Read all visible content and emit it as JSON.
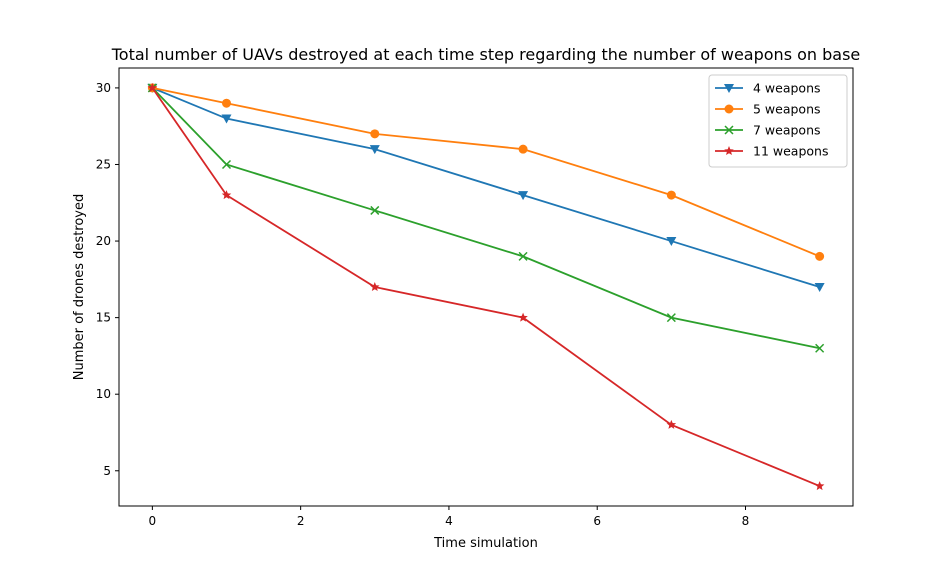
{
  "chart_data": {
    "type": "line",
    "title": "Total number of UAVs destroyed at each time step regarding the number of weapons on base",
    "xlabel": "Time simulation",
    "ylabel": "Number of drones destroyed",
    "xlim": [
      -0.45,
      9.45
    ],
    "ylim": [
      2.7,
      31.3
    ],
    "xticks": [
      0,
      2,
      4,
      6,
      8
    ],
    "yticks": [
      5,
      10,
      15,
      20,
      25,
      30
    ],
    "grid": false,
    "legend_position": "top-right",
    "x": [
      0,
      1,
      3,
      5,
      7,
      9
    ],
    "series": [
      {
        "name": "4 weapons",
        "values": [
          30,
          28,
          26,
          23,
          20,
          17
        ],
        "color": "#1f77b4",
        "marker": "triangle-down"
      },
      {
        "name": "5 weapons",
        "values": [
          30,
          29,
          27,
          26,
          23,
          19
        ],
        "color": "#ff7f0e",
        "marker": "circle"
      },
      {
        "name": "7 weapons",
        "values": [
          30,
          25,
          22,
          19,
          15,
          13
        ],
        "color": "#2ca02c",
        "marker": "x"
      },
      {
        "name": "11 weapons",
        "values": [
          30,
          23,
          17,
          15,
          8,
          4
        ],
        "color": "#d62728",
        "marker": "star"
      }
    ]
  }
}
